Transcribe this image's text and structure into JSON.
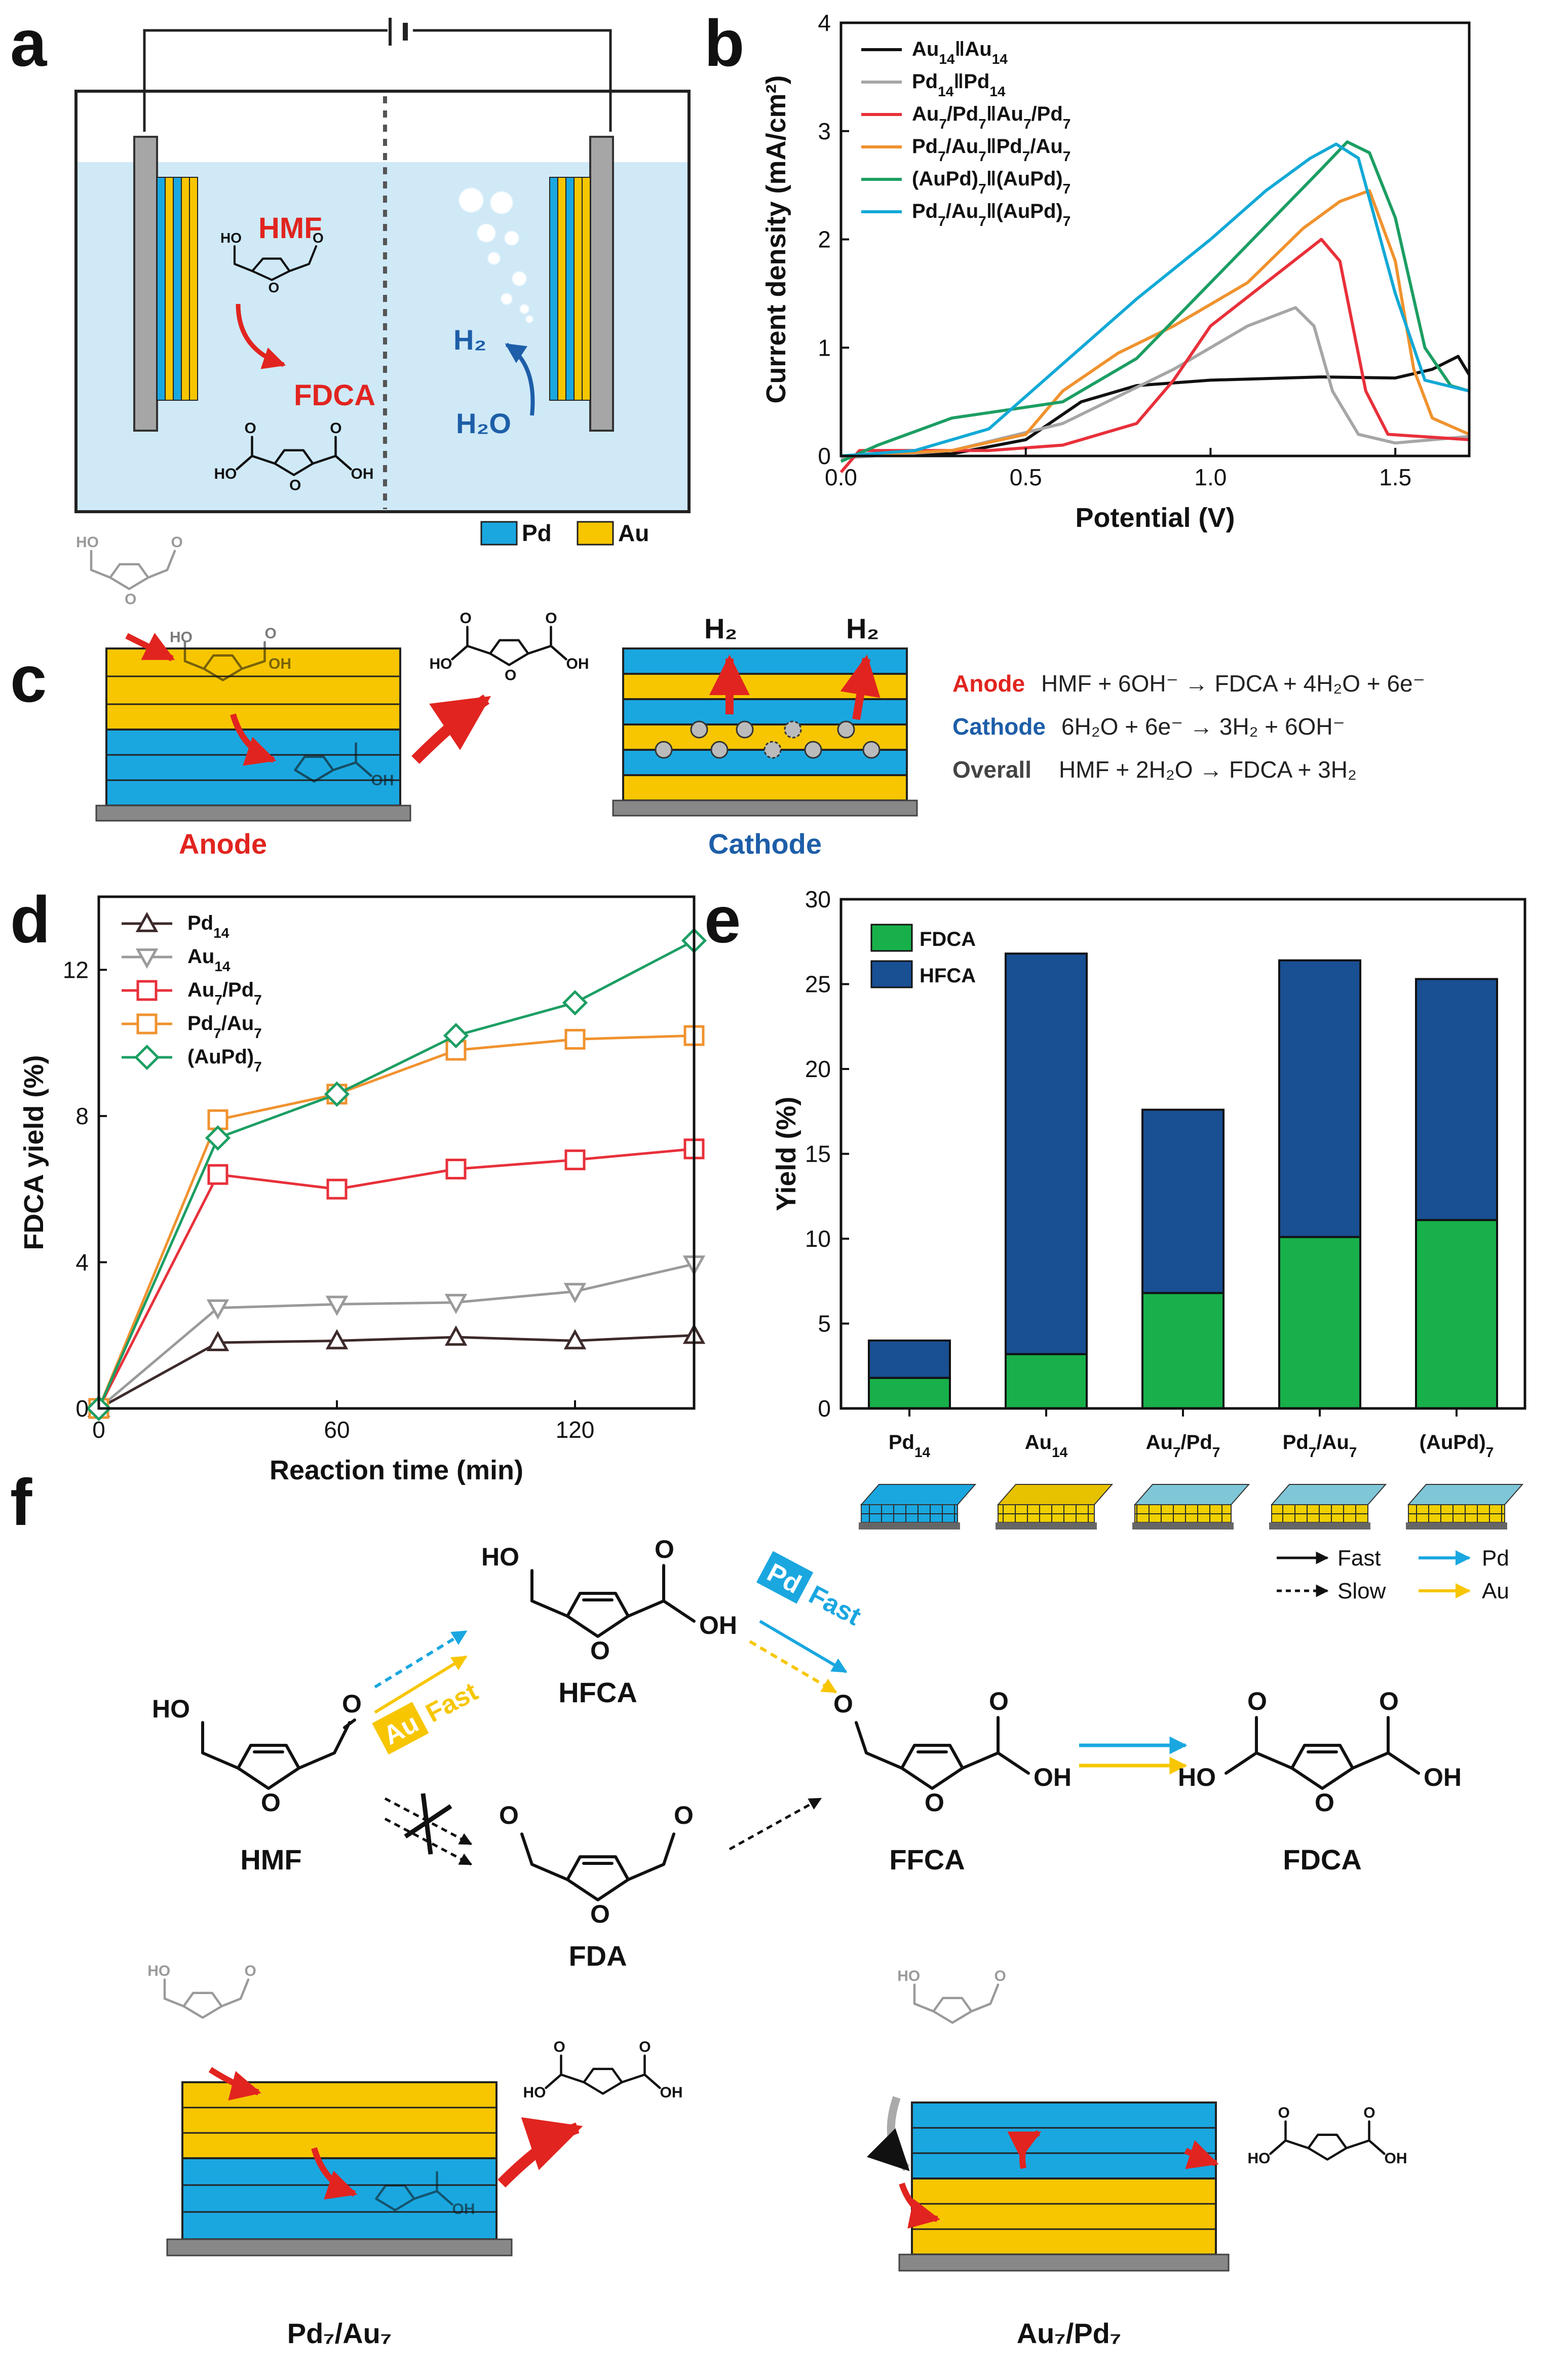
{
  "panels": {
    "a": "a",
    "b": "b",
    "c": "c",
    "d": "d",
    "e": "e",
    "f": "f"
  },
  "colors": {
    "pd": "#1aa7e0",
    "au": "#f7c600",
    "electrolyte": "#cfe9f7",
    "au14": "#111111",
    "pd14": "#a6a6a6",
    "au7pd7": "#e8303a",
    "pd7au7": "#f0922e",
    "aupd7": "#1c9e63",
    "pd7aupd7": "#12a9d6",
    "fdca": "#18b04a",
    "hfca": "#194f93",
    "red": "#e1241f",
    "blue": "#1d5ea8"
  },
  "panel_a": {
    "hmf": "HMF",
    "fdca": "FDCA",
    "h2": "H₂",
    "h2o": "H₂O",
    "legend_pd": "Pd",
    "legend_au": "Au",
    "ho": "HO",
    "oh": "OH"
  },
  "chart_b": {
    "type": "line",
    "xlabel": "Potential (V)",
    "ylabel": "Current density (mA/cm²)",
    "xlim": [
      0,
      1.7
    ],
    "ylim": [
      0,
      4
    ],
    "xticks": [
      "0.0",
      "0.5",
      "1.0",
      "1.5"
    ],
    "yticks": [
      "0",
      "1",
      "2",
      "3",
      "4"
    ],
    "series": [
      {
        "name": "Au14||Au14",
        "label": "Au",
        "s1": "14",
        "sep": "ǁ",
        "label2": "Au",
        "s2": "14",
        "color": "#111111",
        "points": [
          [
            0,
            0
          ],
          [
            0.3,
            0.02
          ],
          [
            0.5,
            0.15
          ],
          [
            0.65,
            0.5
          ],
          [
            0.8,
            0.65
          ],
          [
            1.0,
            0.7
          ],
          [
            1.3,
            0.73
          ],
          [
            1.5,
            0.72
          ],
          [
            1.6,
            0.8
          ],
          [
            1.67,
            0.92
          ],
          [
            1.7,
            0.75
          ]
        ]
      },
      {
        "name": "Pd14||Pd14",
        "label": "Pd",
        "s1": "14",
        "sep": "ǁ",
        "label2": "Pd",
        "s2": "14",
        "color": "#a6a6a6",
        "points": [
          [
            0,
            -0.02
          ],
          [
            0.3,
            0.05
          ],
          [
            0.6,
            0.3
          ],
          [
            0.9,
            0.8
          ],
          [
            1.1,
            1.2
          ],
          [
            1.23,
            1.37
          ],
          [
            1.28,
            1.2
          ],
          [
            1.33,
            0.6
          ],
          [
            1.4,
            0.2
          ],
          [
            1.5,
            0.12
          ],
          [
            1.7,
            0.18
          ]
        ]
      },
      {
        "name": "Au7/Pd7||Au7/Pd7",
        "label": "Au",
        "s1": "7",
        "mid": "/Pd",
        "s1b": "7",
        "sep": "ǁ",
        "label2": "Au",
        "s2": "7",
        "mid2": "/Pd",
        "s2b": "7",
        "color": "#e8303a",
        "points": [
          [
            0,
            -0.15
          ],
          [
            0.05,
            0.05
          ],
          [
            0.4,
            0.05
          ],
          [
            0.6,
            0.1
          ],
          [
            0.8,
            0.3
          ],
          [
            0.9,
            0.7
          ],
          [
            1.0,
            1.2
          ],
          [
            1.15,
            1.6
          ],
          [
            1.3,
            2.0
          ],
          [
            1.35,
            1.8
          ],
          [
            1.42,
            0.6
          ],
          [
            1.48,
            0.2
          ],
          [
            1.7,
            0.15
          ]
        ]
      },
      {
        "name": "Pd7/Au7||Pd7/Au7",
        "label": "Pd",
        "s1": "7",
        "mid": "/Au",
        "s1b": "7",
        "sep": "ǁ",
        "label2": "Pd",
        "s2": "7",
        "mid2": "/Au",
        "s2b": "7",
        "color": "#f0922e",
        "points": [
          [
            0,
            0
          ],
          [
            0.3,
            0.05
          ],
          [
            0.5,
            0.2
          ],
          [
            0.6,
            0.6
          ],
          [
            0.75,
            0.95
          ],
          [
            0.9,
            1.2
          ],
          [
            1.1,
            1.6
          ],
          [
            1.25,
            2.1
          ],
          [
            1.35,
            2.35
          ],
          [
            1.43,
            2.45
          ],
          [
            1.5,
            1.8
          ],
          [
            1.55,
            0.8
          ],
          [
            1.6,
            0.35
          ],
          [
            1.7,
            0.2
          ]
        ]
      },
      {
        "name": "(AuPd)7||(AuPd)7",
        "label": "(AuPd)",
        "s1": "7",
        "sep": "ǁ",
        "label2": "(AuPd)",
        "s2": "7",
        "color": "#1c9e63",
        "points": [
          [
            0,
            -0.05
          ],
          [
            0.1,
            0.1
          ],
          [
            0.3,
            0.35
          ],
          [
            0.5,
            0.45
          ],
          [
            0.6,
            0.5
          ],
          [
            0.8,
            0.9
          ],
          [
            1.0,
            1.6
          ],
          [
            1.2,
            2.3
          ],
          [
            1.3,
            2.65
          ],
          [
            1.37,
            2.9
          ],
          [
            1.43,
            2.8
          ],
          [
            1.5,
            2.2
          ],
          [
            1.58,
            1.0
          ],
          [
            1.65,
            0.65
          ],
          [
            1.7,
            0.6
          ]
        ]
      },
      {
        "name": "Pd7/Au7||(AuPd)7",
        "label": "Pd",
        "s1": "7",
        "mid": "/Au",
        "s1b": "7",
        "sep": "ǁ",
        "label2": "(AuPd)",
        "s2": "7",
        "color": "#12a9d6",
        "points": [
          [
            0,
            0
          ],
          [
            0.2,
            0.05
          ],
          [
            0.4,
            0.25
          ],
          [
            0.6,
            0.85
          ],
          [
            0.8,
            1.45
          ],
          [
            1.0,
            2.0
          ],
          [
            1.15,
            2.45
          ],
          [
            1.27,
            2.75
          ],
          [
            1.34,
            2.88
          ],
          [
            1.4,
            2.75
          ],
          [
            1.5,
            1.5
          ],
          [
            1.58,
            0.7
          ],
          [
            1.7,
            0.6
          ]
        ]
      }
    ]
  },
  "panel_c": {
    "anode": "Anode",
    "cathode": "Cathode",
    "overall": "Overall",
    "h2": "H₂",
    "eq_anode": "HMF + 6OH⁻ → FDCA + 4H₂O + 6e⁻",
    "eq_cathode": "6H₂O + 6e⁻ → 3H₂ + 6OH⁻",
    "eq_overall": "HMF + 2H₂O → FDCA + 3H₂"
  },
  "chart_d": {
    "type": "line",
    "xlabel": "Reaction time (min)",
    "ylabel": "FDCA yield (%)",
    "xlim": [
      0,
      150
    ],
    "ylim": [
      0,
      14
    ],
    "xticks": [
      "0",
      "60",
      "120"
    ],
    "yticks": [
      "0",
      "4",
      "8",
      "12"
    ],
    "series": [
      {
        "name": "Pd14",
        "label": "Pd",
        "sub": "14",
        "color": "#3d2a2a",
        "marker": "tri-up",
        "points": [
          [
            0,
            0
          ],
          [
            30,
            1.8
          ],
          [
            60,
            1.85
          ],
          [
            90,
            1.95
          ],
          [
            120,
            1.85
          ],
          [
            150,
            2.0
          ]
        ]
      },
      {
        "name": "Au14",
        "label": "Au",
        "sub": "14",
        "color": "#9a9a9a",
        "marker": "tri-down",
        "points": [
          [
            0,
            0
          ],
          [
            30,
            2.75
          ],
          [
            60,
            2.85
          ],
          [
            90,
            2.9
          ],
          [
            120,
            3.2
          ],
          [
            150,
            3.95
          ]
        ]
      },
      {
        "name": "Au7/Pd7",
        "label": "Au",
        "sub": "7",
        "mid": "/Pd",
        "sub2": "7",
        "color": "#e8303a",
        "marker": "square",
        "points": [
          [
            0,
            0
          ],
          [
            30,
            6.4
          ],
          [
            60,
            6.0
          ],
          [
            90,
            6.55
          ],
          [
            120,
            6.8
          ],
          [
            150,
            7.1
          ]
        ]
      },
      {
        "name": "Pd7/Au7",
        "label": "Pd",
        "sub": "7",
        "mid": "/Au",
        "sub2": "7",
        "color": "#f0922e",
        "marker": "square",
        "points": [
          [
            0,
            0
          ],
          [
            30,
            7.9
          ],
          [
            60,
            8.6
          ],
          [
            90,
            9.8
          ],
          [
            120,
            10.1
          ],
          [
            150,
            10.2
          ]
        ]
      },
      {
        "name": "(AuPd)7",
        "label": "(AuPd)",
        "sub": "7",
        "color": "#1c9e63",
        "marker": "diamond",
        "points": [
          [
            0,
            0
          ],
          [
            30,
            7.4
          ],
          [
            60,
            8.6
          ],
          [
            90,
            10.2
          ],
          [
            120,
            11.1
          ],
          [
            150,
            12.8
          ]
        ]
      }
    ]
  },
  "chart_e": {
    "type": "bar",
    "ylabel": "Yield (%)",
    "ylim": [
      0,
      30
    ],
    "yticks": [
      "0",
      "5",
      "10",
      "15",
      "20",
      "25",
      "30"
    ],
    "categories": [
      {
        "label": "Pd",
        "sub": "14"
      },
      {
        "label": "Au",
        "sub": "14"
      },
      {
        "label": "Au",
        "sub": "7",
        "mid": "/Pd",
        "sub2": "7"
      },
      {
        "label": "Pd",
        "sub": "7",
        "mid": "/Au",
        "sub2": "7"
      },
      {
        "label": "(AuPd)",
        "sub": "7"
      }
    ],
    "series": [
      {
        "name": "FDCA",
        "color": "#18b04a",
        "values": [
          1.8,
          3.2,
          6.8,
          10.1,
          11.1
        ]
      },
      {
        "name": "HFCA",
        "color": "#194f93",
        "values": [
          2.2,
          23.6,
          10.8,
          16.3,
          14.2
        ]
      }
    ]
  },
  "panel_f": {
    "legend_fast": "Fast",
    "legend_slow": "Slow",
    "legend_pd": "Pd",
    "legend_au": "Au",
    "hmf": "HMF",
    "hfca": "HFCA",
    "fda": "FDA",
    "ffca": "FFCA",
    "fdca": "FDCA",
    "tag_au": "Au",
    "tag_pd": "Pd",
    "tag_fast": "Fast",
    "bottom_left": "Pd₇/Au₇",
    "bottom_right": "Au₇/Pd₇",
    "ho": "HO",
    "oh": "OH",
    "o": "O"
  }
}
